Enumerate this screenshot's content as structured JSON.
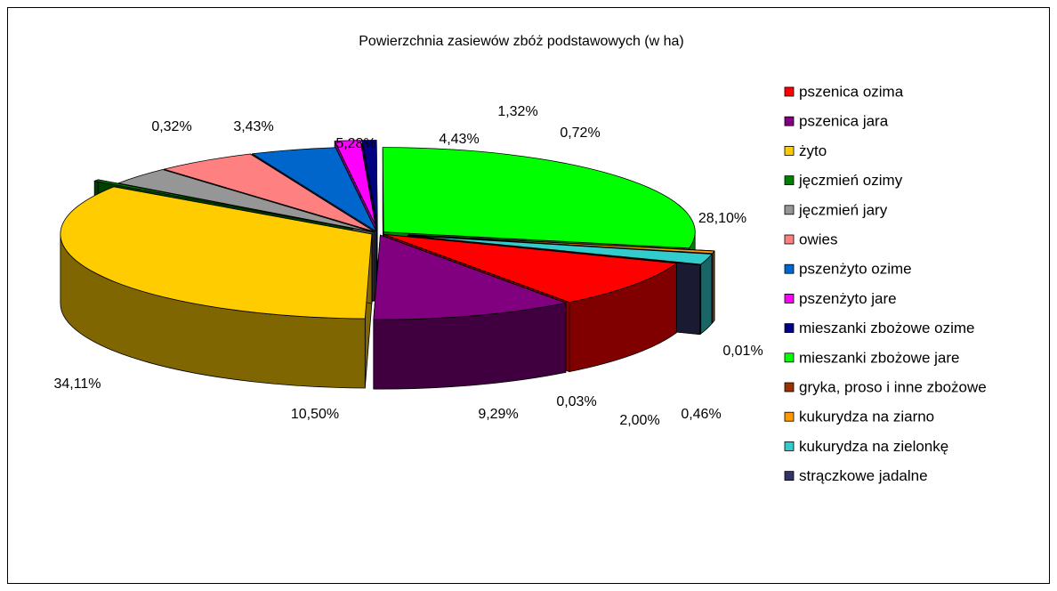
{
  "chart_data": {
    "type": "pie",
    "title": "Powierzchnia zasiewów zbóż podstawowych (w ha)",
    "categories": [
      "pszenica ozima",
      "pszenica jara",
      "żyto",
      "jęczmień ozimy",
      "jęczmień jary",
      "owies",
      "pszenżyto ozime",
      "pszenżyto jare",
      "mieszanki zbożowe ozime",
      "mieszanki zbożowe jare",
      "gryka, proso i inne zbożowe",
      "kukurydza na ziarno",
      "kukurydza na zielonkę",
      "strączkowe jadalne"
    ],
    "values": [
      9.29,
      10.5,
      34.11,
      0.32,
      3.43,
      5.28,
      4.43,
      1.32,
      0.72,
      28.1,
      0.01,
      0.46,
      2.0,
      0.03
    ],
    "value_labels": [
      "9,29%",
      "10,50%",
      "34,11%",
      "0,32%",
      "3,43%",
      "5,28%",
      "4,43%",
      "1,32%",
      "0,72%",
      "28,10%",
      "0,01%",
      "0,46%",
      "2,00%",
      "0,03%"
    ],
    "colors": [
      "#ff0000",
      "#800080",
      "#ffcc00",
      "#008000",
      "#969696",
      "#ff8080",
      "#0066cc",
      "#ff00ff",
      "#000080",
      "#00ff00",
      "#993300",
      "#ff9900",
      "#33cccc",
      "#333366"
    ],
    "legend": "right"
  }
}
